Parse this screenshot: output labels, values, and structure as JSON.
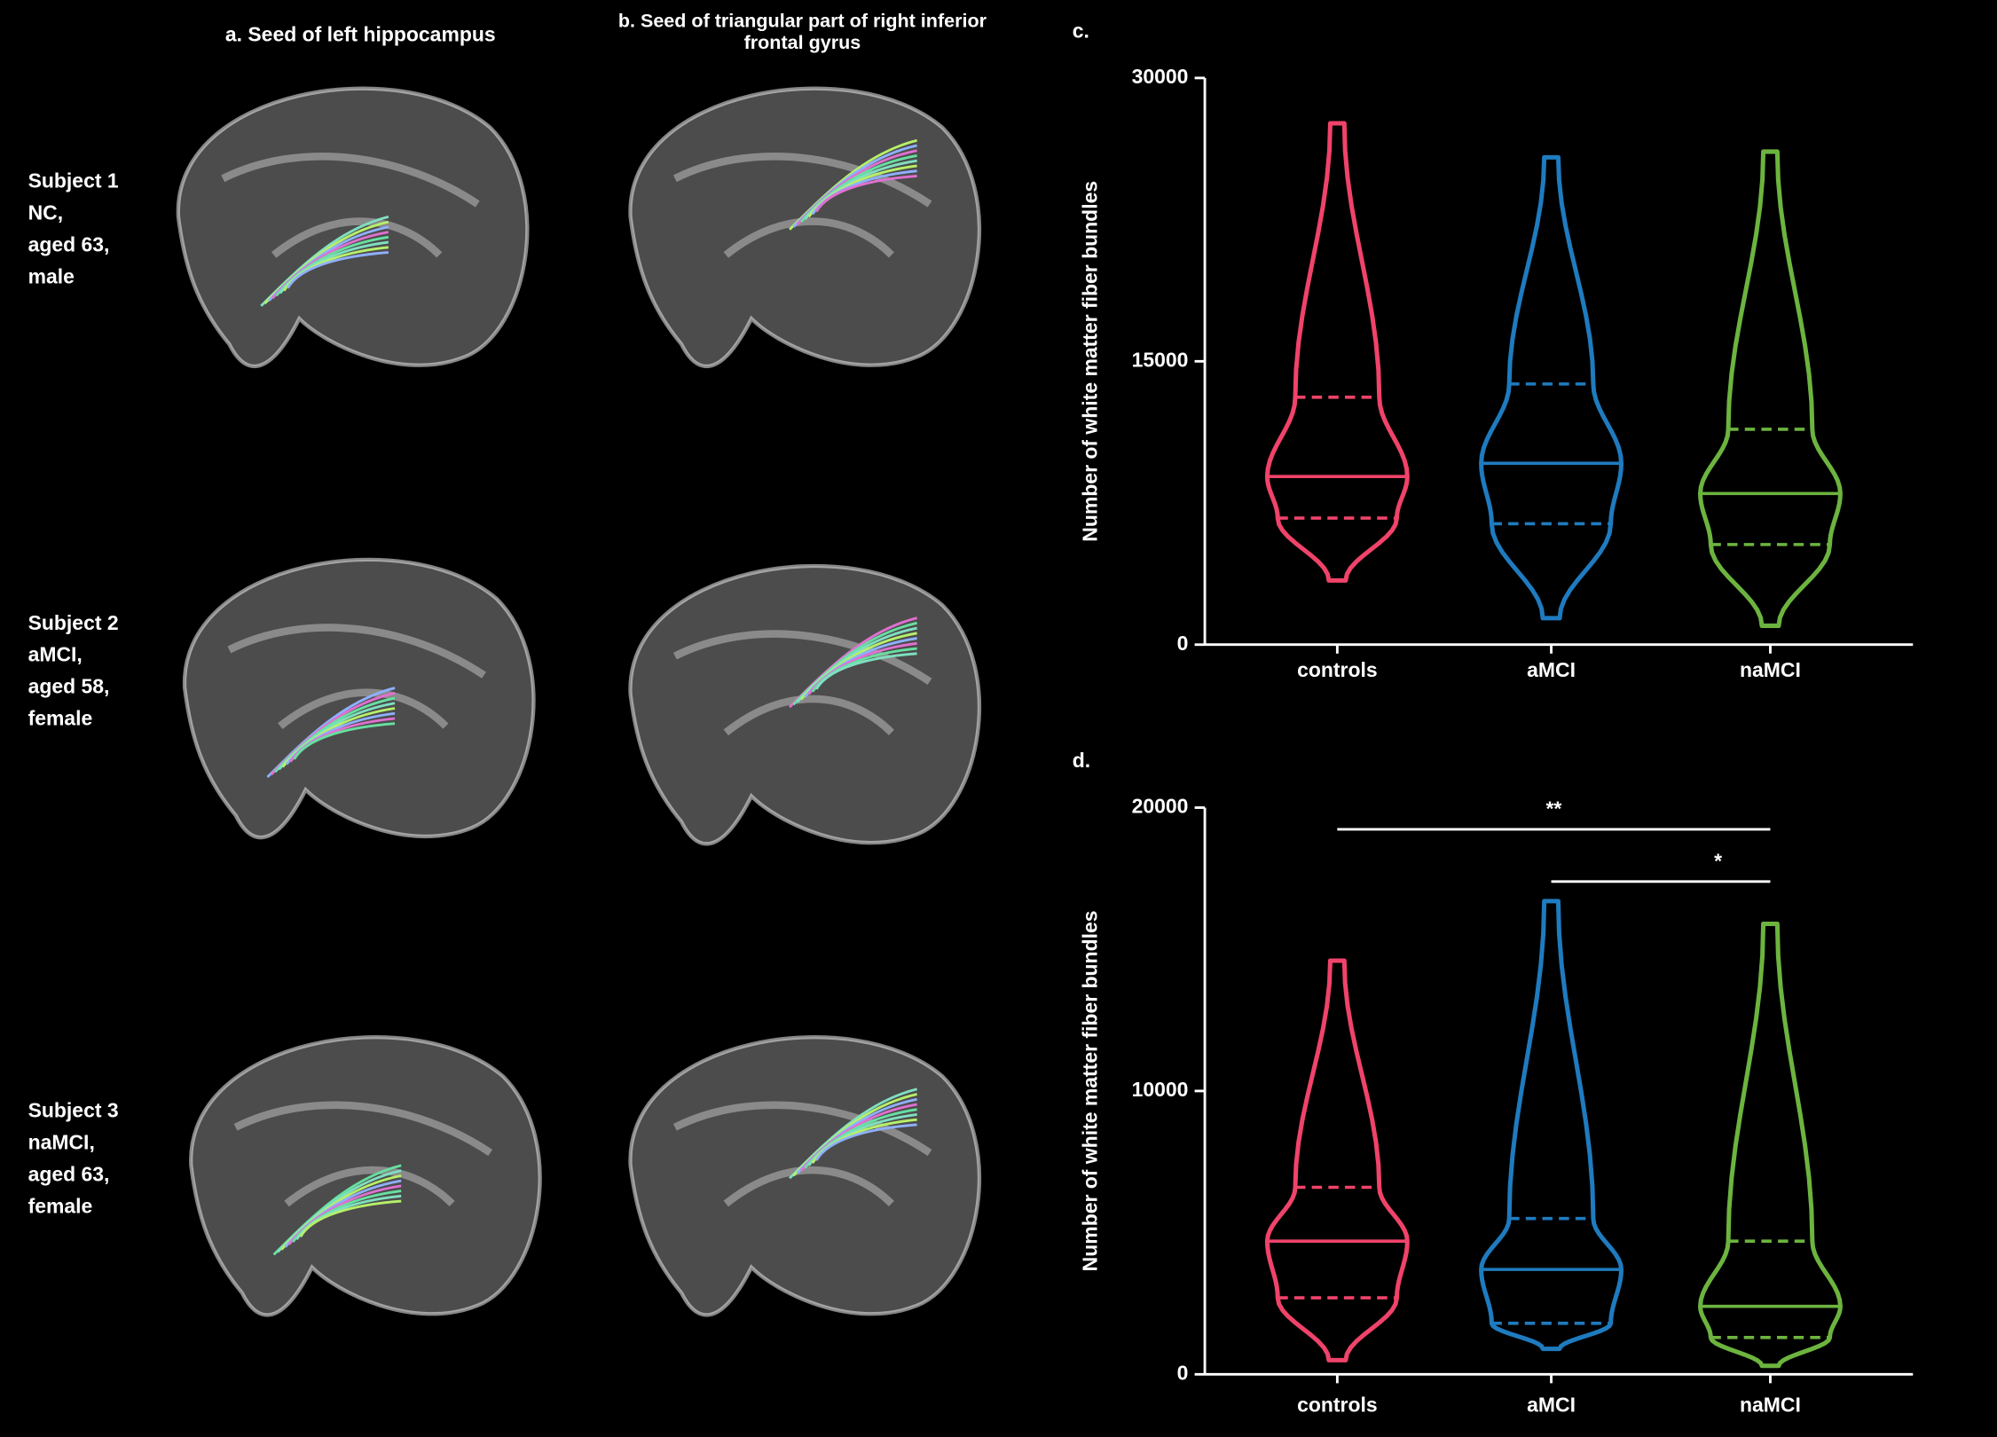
{
  "figure": {
    "columns": [
      "a. Seed of left hippocampus",
      "b. Seed of triangular part of right inferior frontal gyrus"
    ],
    "subjects": [
      [
        "Subject 1",
        "NC,",
        "aged 63,",
        "male"
      ],
      [
        "Subject 2",
        "aMCI,",
        "aged 58,",
        "female"
      ],
      [
        "Subject 3",
        "naMCI,",
        "aged 63,",
        "female"
      ]
    ]
  },
  "chart_data": [
    {
      "type": "violin",
      "panel": "c.",
      "y_label": "Number of white matter fiber bundles",
      "categories": [
        "controls",
        "aMCI",
        "naMCI"
      ],
      "colors": [
        "#f0436a",
        "#1f7bbf",
        "#6cb43f"
      ],
      "min": [
        3400,
        1400,
        1000
      ],
      "q1": [
        6700,
        6400,
        5300
      ],
      "median": [
        8900,
        9600,
        8000
      ],
      "q3": [
        13100,
        13800,
        11400
      ],
      "max": [
        27600,
        25800,
        26100
      ],
      "ylim": [
        0,
        30000
      ],
      "yticks": [
        0,
        15000,
        30000
      ]
    },
    {
      "type": "violin",
      "panel": "d.",
      "y_label": "Number of white matter fiber bundles",
      "categories": [
        "controls",
        "aMCI",
        "naMCI"
      ],
      "colors": [
        "#f0436a",
        "#1f7bbf",
        "#6cb43f"
      ],
      "min": [
        500,
        900,
        300
      ],
      "q1": [
        2700,
        1800,
        1300
      ],
      "median": [
        4700,
        3700,
        2400
      ],
      "q3": [
        6600,
        5500,
        4700
      ],
      "max": [
        14600,
        16700,
        15900
      ],
      "ylim": [
        0,
        20000
      ],
      "yticks": [
        0,
        10000,
        20000
      ],
      "annotations": [
        {
          "label": "**",
          "from": "controls",
          "to": "naMCI"
        },
        {
          "label": "*",
          "from": "aMCI",
          "to": "naMCI"
        }
      ]
    }
  ]
}
